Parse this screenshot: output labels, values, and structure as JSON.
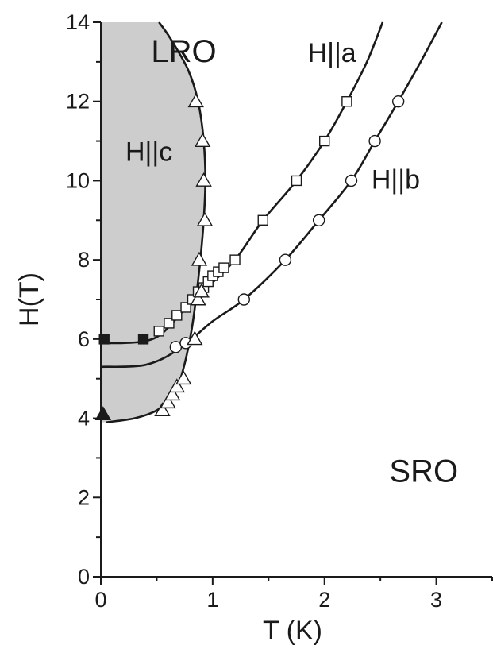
{
  "chart_data": {
    "type": "scatter",
    "title": "",
    "xlabel": "T (K)",
    "ylabel": "H(T)",
    "xlim": [
      0,
      3.5
    ],
    "ylim": [
      0,
      14
    ],
    "xticks": [
      0,
      1,
      2,
      3
    ],
    "yticks": [
      0,
      2,
      4,
      6,
      8,
      10,
      12,
      14
    ],
    "grid": false,
    "legend": "none",
    "colors": {
      "lro_fill": "#cdcdcd",
      "line": "#1a1a1a",
      "marker_face_open": "#ffffff",
      "marker_face_filled": "#1a1a1a"
    },
    "annotations": [
      {
        "text": "LRO",
        "x": 0.45,
        "y": 13.0,
        "role": "region"
      },
      {
        "text": "H||c",
        "x": 0.22,
        "y": 10.5,
        "role": "orientation"
      },
      {
        "text": "H||a",
        "x": 1.85,
        "y": 13.0,
        "role": "orientation"
      },
      {
        "text": "H||b",
        "x": 2.42,
        "y": 9.8,
        "role": "orientation"
      },
      {
        "text": "SRO",
        "x": 2.58,
        "y": 2.4,
        "role": "region"
      }
    ],
    "series": [
      {
        "marker": "open-square",
        "points": [
          [
            0.52,
            6.2
          ],
          [
            0.61,
            6.4
          ],
          [
            0.68,
            6.6
          ],
          [
            0.76,
            6.8
          ],
          [
            0.82,
            7.0
          ],
          [
            0.87,
            7.2
          ],
          [
            0.92,
            7.3
          ],
          [
            0.96,
            7.45
          ],
          [
            1.0,
            7.6
          ],
          [
            1.05,
            7.7
          ],
          [
            1.1,
            7.8
          ],
          [
            1.2,
            8.0
          ],
          [
            1.45,
            9.0
          ],
          [
            1.75,
            10.0
          ],
          [
            2.0,
            11.0
          ],
          [
            2.2,
            12.0
          ]
        ]
      },
      {
        "marker": "open-circle",
        "points": [
          [
            0.67,
            5.8
          ],
          [
            0.76,
            5.9
          ],
          [
            1.28,
            7.0
          ],
          [
            1.65,
            8.0
          ],
          [
            1.95,
            9.0
          ],
          [
            2.24,
            10.0
          ],
          [
            2.45,
            11.0
          ],
          [
            2.66,
            12.0
          ]
        ]
      },
      {
        "marker": "open-triangle",
        "points": [
          [
            0.55,
            4.2
          ],
          [
            0.6,
            4.4
          ],
          [
            0.64,
            4.6
          ],
          [
            0.68,
            4.8
          ],
          [
            0.74,
            5.0
          ],
          [
            0.84,
            6.0
          ],
          [
            0.87,
            7.0
          ],
          [
            0.9,
            7.2
          ],
          [
            0.88,
            8.0
          ],
          [
            0.93,
            9.0
          ],
          [
            0.92,
            10.0
          ],
          [
            0.91,
            11.0
          ],
          [
            0.85,
            12.0
          ]
        ]
      },
      {
        "marker": "filled-square",
        "points": [
          [
            0.03,
            6.0
          ],
          [
            0.38,
            6.0
          ]
        ]
      },
      {
        "marker": "filled-triangle",
        "points": [
          [
            0.02,
            4.1
          ]
        ]
      }
    ],
    "curves": [
      {
        "role": "LRO-boundary",
        "points": [
          [
            0.05,
            3.9
          ],
          [
            0.3,
            4.0
          ],
          [
            0.5,
            4.2
          ],
          [
            0.62,
            4.5
          ],
          [
            0.7,
            4.9
          ],
          [
            0.76,
            5.5
          ],
          [
            0.81,
            6.2
          ],
          [
            0.85,
            7.0
          ],
          [
            0.89,
            8.0
          ],
          [
            0.92,
            9.0
          ],
          [
            0.935,
            10.0
          ],
          [
            0.92,
            11.0
          ],
          [
            0.87,
            12.0
          ],
          [
            0.78,
            12.8
          ],
          [
            0.62,
            13.6
          ],
          [
            0.52,
            14.0
          ]
        ]
      },
      {
        "role": "H||a",
        "points": [
          [
            0.0,
            5.9
          ],
          [
            0.2,
            5.9
          ],
          [
            0.4,
            5.95
          ],
          [
            0.55,
            6.15
          ],
          [
            0.75,
            6.75
          ],
          [
            0.95,
            7.3
          ],
          [
            1.2,
            8.0
          ],
          [
            1.45,
            9.0
          ],
          [
            1.75,
            10.0
          ],
          [
            2.0,
            11.0
          ],
          [
            2.2,
            12.0
          ],
          [
            2.38,
            13.0
          ],
          [
            2.52,
            14.0
          ]
        ]
      },
      {
        "role": "H||b",
        "points": [
          [
            0.0,
            5.3
          ],
          [
            0.4,
            5.35
          ],
          [
            0.7,
            5.75
          ],
          [
            1.0,
            6.45
          ],
          [
            1.28,
            7.0
          ],
          [
            1.65,
            8.0
          ],
          [
            1.95,
            9.0
          ],
          [
            2.24,
            10.0
          ],
          [
            2.45,
            11.0
          ],
          [
            2.66,
            12.0
          ],
          [
            2.86,
            13.0
          ],
          [
            3.05,
            14.0
          ]
        ]
      }
    ]
  }
}
